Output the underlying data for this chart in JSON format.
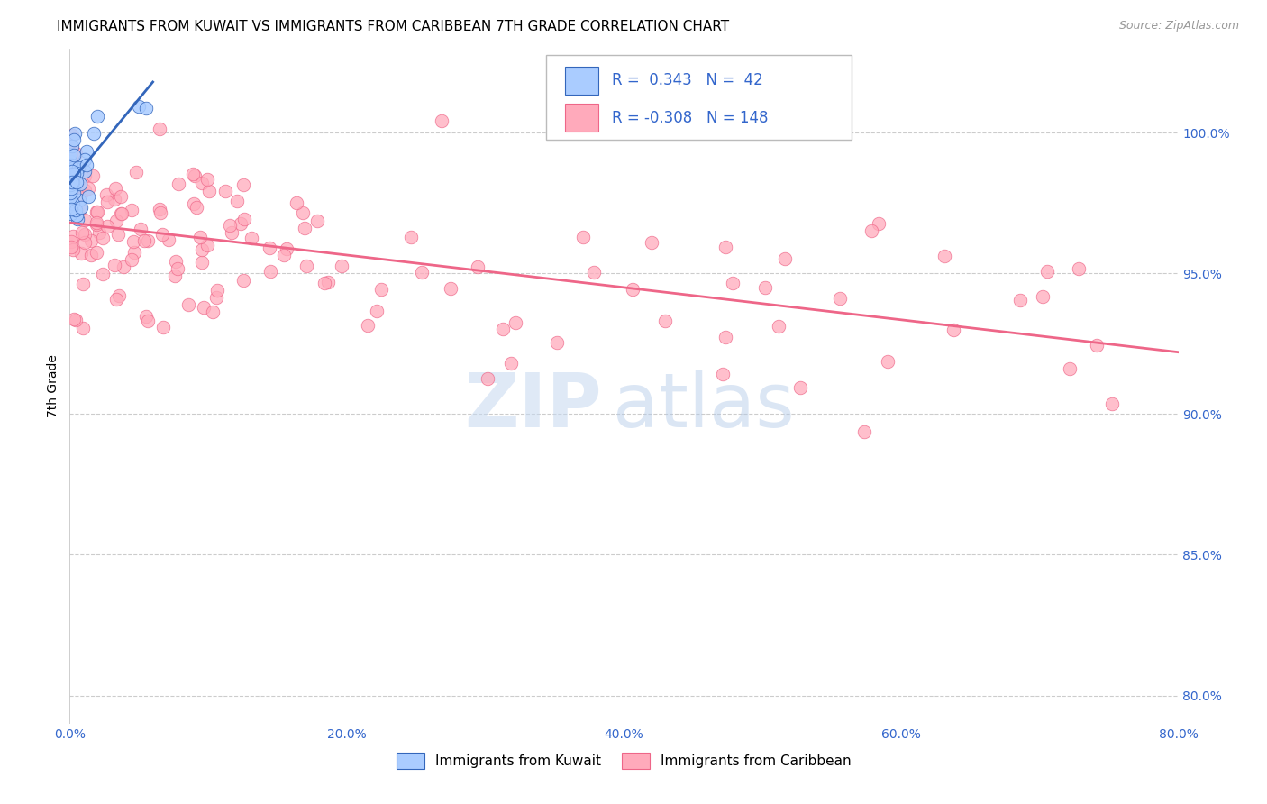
{
  "title": "IMMIGRANTS FROM KUWAIT VS IMMIGRANTS FROM CARIBBEAN 7TH GRADE CORRELATION CHART",
  "source": "Source: ZipAtlas.com",
  "ylabel_left": "7th Grade",
  "xlim": [
    0.0,
    80.0
  ],
  "ylim": [
    79.0,
    103.0
  ],
  "yright_ticks": [
    80.0,
    85.0,
    90.0,
    95.0,
    100.0
  ],
  "xticks": [
    0.0,
    20.0,
    40.0,
    60.0,
    80.0
  ],
  "legend_r_kuwait": "0.343",
  "legend_n_kuwait": "42",
  "legend_r_carib": "-0.308",
  "legend_n_carib": "148",
  "color_kuwait_fill": "#aaccff",
  "color_kuwait_edge": "#3366bb",
  "color_carib_fill": "#ffaabb",
  "color_carib_edge": "#ee6688",
  "color_kuwait_line": "#3366bb",
  "color_carib_line": "#ee6688",
  "title_fontsize": 11,
  "source_fontsize": 9,
  "tick_color": "#3366cc",
  "grid_color": "#cccccc",
  "watermark_zip_color": "#c5d8f0",
  "watermark_atlas_color": "#b0c8e8",
  "kuwait_trend_x0": 0.0,
  "kuwait_trend_y0": 98.2,
  "kuwait_trend_x1": 6.0,
  "kuwait_trend_y1": 101.8,
  "carib_trend_x0": 0.0,
  "carib_trend_y0": 96.8,
  "carib_trend_x1": 80.0,
  "carib_trend_y1": 92.2
}
